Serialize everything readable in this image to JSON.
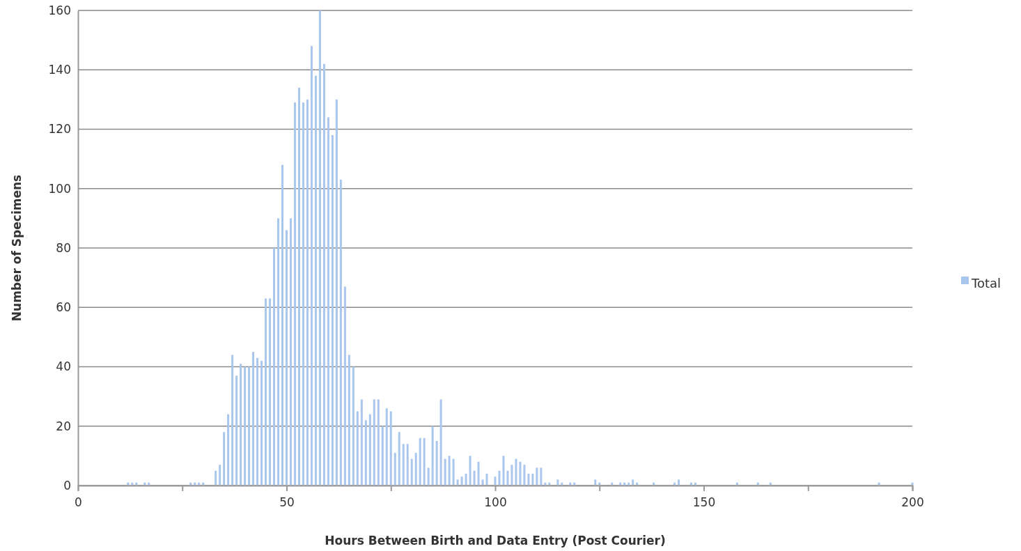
{
  "chart_data": {
    "type": "bar",
    "xlabel": "Hours Between Birth and Data Entry (Post Courier)",
    "ylabel": "Number of Specimens",
    "x": [
      12,
      13,
      14,
      16,
      17,
      27,
      28,
      29,
      30,
      33,
      34,
      35,
      36,
      37,
      38,
      39,
      40,
      41,
      42,
      43,
      44,
      45,
      46,
      47,
      48,
      49,
      50,
      51,
      52,
      53,
      54,
      55,
      56,
      57,
      58,
      59,
      60,
      61,
      62,
      63,
      64,
      65,
      66,
      67,
      68,
      69,
      70,
      71,
      72,
      73,
      74,
      75,
      76,
      77,
      78,
      79,
      80,
      81,
      82,
      83,
      84,
      85,
      86,
      87,
      88,
      89,
      90,
      91,
      92,
      93,
      94,
      95,
      96,
      97,
      98,
      100,
      101,
      102,
      103,
      104,
      105,
      106,
      107,
      108,
      109,
      110,
      111,
      112,
      113,
      115,
      116,
      118,
      119,
      124,
      125,
      128,
      130,
      131,
      132,
      133,
      134,
      138,
      143,
      144,
      147,
      148,
      158,
      163,
      166,
      192,
      200
    ],
    "series": [
      {
        "name": "Total",
        "color": "#a9c6ec",
        "values": [
          1,
          1,
          1,
          1,
          1,
          1,
          1,
          1,
          1,
          5,
          7,
          18,
          24,
          44,
          37,
          41,
          40,
          40,
          45,
          43,
          42,
          63,
          63,
          80,
          90,
          108,
          86,
          90,
          129,
          134,
          129,
          130,
          148,
          138,
          160,
          142,
          124,
          118,
          130,
          103,
          67,
          44,
          40,
          25,
          29,
          22,
          24,
          29,
          29,
          20,
          26,
          25,
          11,
          18,
          14,
          14,
          9,
          11,
          16,
          16,
          6,
          20,
          15,
          29,
          9,
          10,
          9,
          2,
          3,
          4,
          10,
          5,
          8,
          2,
          4,
          3,
          5,
          10,
          5,
          7,
          9,
          8,
          7,
          4,
          4,
          6,
          6,
          1,
          1,
          2,
          1,
          1,
          1,
          2,
          1,
          1,
          1,
          1,
          1,
          2,
          1,
          1,
          1,
          2,
          1,
          1,
          1,
          1,
          1,
          1,
          1
        ]
      }
    ],
    "xlim": [
      0,
      200
    ],
    "xticks": [
      0,
      {
        "value": 25,
        "label": null
      },
      50,
      {
        "value": 75,
        "label": null
      },
      100,
      {
        "value": 125,
        "label": null
      },
      150,
      {
        "value": 175,
        "label": null
      },
      200
    ],
    "ylim": [
      0,
      160
    ],
    "yticks": [
      0,
      20,
      40,
      60,
      80,
      100,
      120,
      140,
      160
    ],
    "grid": "y",
    "legend": "right"
  }
}
